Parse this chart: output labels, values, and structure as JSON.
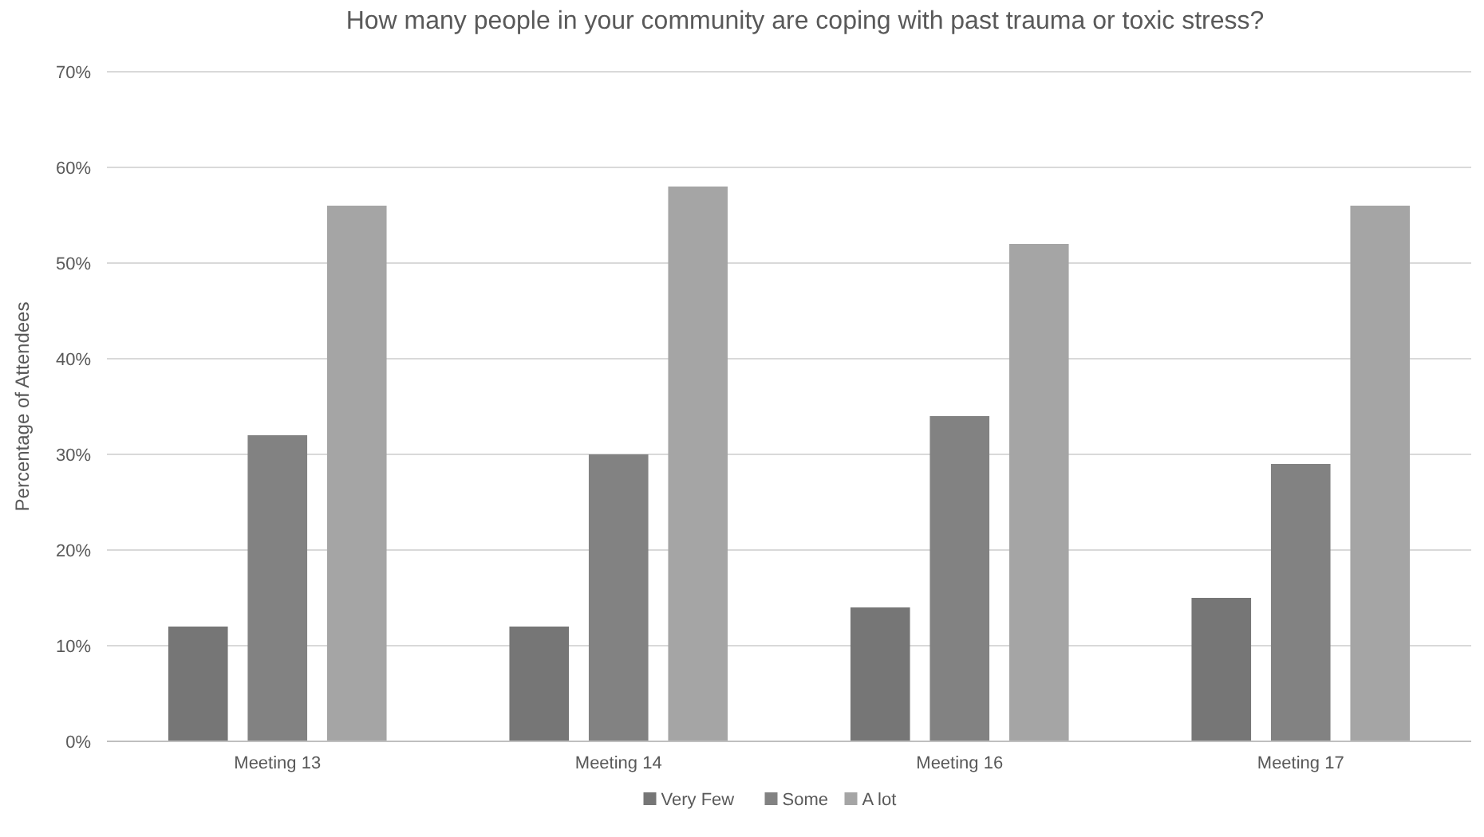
{
  "chart_data": {
    "type": "bar",
    "title": "How many people in your community are coping with past trauma or toxic stress?",
    "ylabel": "Percentage of Attendees",
    "categories": [
      "Meeting 13",
      "Meeting 14",
      "Meeting 16",
      "Meeting 17"
    ],
    "series": [
      {
        "name": "Very Few",
        "color": "#767676",
        "values": [
          12,
          12,
          14,
          15
        ]
      },
      {
        "name": "Some",
        "color": "#828282",
        "values": [
          32,
          30,
          34,
          29
        ]
      },
      {
        "name": "A lot",
        "color": "#a5a5a5",
        "values": [
          56,
          58,
          52,
          56
        ]
      }
    ],
    "ylim": [
      0,
      70
    ],
    "yticks": [
      {
        "value": 0,
        "label": "0%"
      },
      {
        "value": 10,
        "label": "10%"
      },
      {
        "value": 20,
        "label": "20%"
      },
      {
        "value": 30,
        "label": "30%"
      },
      {
        "value": 40,
        "label": "40%"
      },
      {
        "value": 50,
        "label": "50%"
      },
      {
        "value": 60,
        "label": "60%"
      },
      {
        "value": 70,
        "label": "70%"
      }
    ],
    "grid": "y",
    "legend": "bottom"
  }
}
